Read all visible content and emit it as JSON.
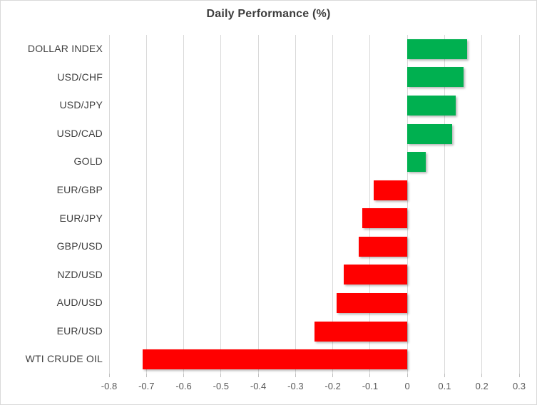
{
  "chart_data": {
    "type": "bar",
    "orientation": "horizontal",
    "title": "Daily Performance (%)",
    "xlabel": "",
    "ylabel": "",
    "categories": [
      "DOLLAR INDEX",
      "USD/CHF",
      "USD/JPY",
      "USD/CAD",
      "GOLD",
      "EUR/GBP",
      "EUR/JPY",
      "GBP/USD",
      "NZD/USD",
      "AUD/USD",
      "EUR/USD",
      "WTI CRUDE OIL"
    ],
    "values": [
      0.16,
      0.15,
      0.13,
      0.12,
      0.05,
      -0.09,
      -0.12,
      -0.13,
      -0.17,
      -0.19,
      -0.25,
      -0.71
    ],
    "xlim": [
      -0.8,
      0.3
    ],
    "xticks": [
      -0.8,
      -0.7,
      -0.6,
      -0.5,
      -0.4,
      -0.3,
      -0.2,
      -0.1,
      0,
      0.1,
      0.2,
      0.3
    ],
    "x_tick_labels": [
      "-0.8",
      "-0.7",
      "-0.6",
      "-0.5",
      "-0.4",
      "-0.3",
      "-0.2",
      "-0.1",
      "0",
      "0.1",
      "0.2",
      "0.3"
    ],
    "grid": "vertical",
    "legend": "none",
    "colors": {
      "positive": "#00b050",
      "negative": "#ff0000",
      "gridline": "#d9d9d9",
      "title_text": "#3d3d3d",
      "category_text": "#404040",
      "tick_text": "#595959",
      "frame_border": "#d9d9d9"
    }
  }
}
